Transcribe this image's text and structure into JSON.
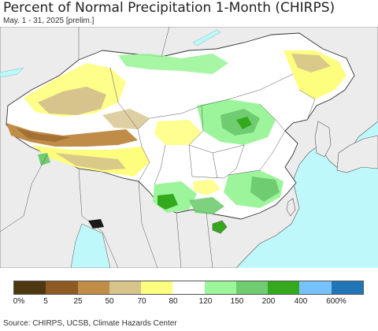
{
  "header": {
    "title": "Percent of Normal Precipitation 1-Month (CHIRPS)",
    "subtitle": "May. 1 - 31, 2025 [prelim.]"
  },
  "legend": {
    "colors": [
      "#4e3812",
      "#8d5a24",
      "#c08d48",
      "#d6c48c",
      "#fefe7e",
      "#ffffff",
      "#9cf59a",
      "#70cc70",
      "#34a91d",
      "#76c2ff",
      "#2176b8"
    ],
    "labels": [
      "0%",
      "5",
      "25",
      "50",
      "70",
      "80",
      "120",
      "150",
      "200",
      "400",
      "600%"
    ]
  },
  "footer": {
    "source": "Source: CHIRPS, UCSB, Climate Hazards Center"
  },
  "map": {
    "ocean_color": "#bff8fb",
    "land_outside_color": "#ececec"
  }
}
